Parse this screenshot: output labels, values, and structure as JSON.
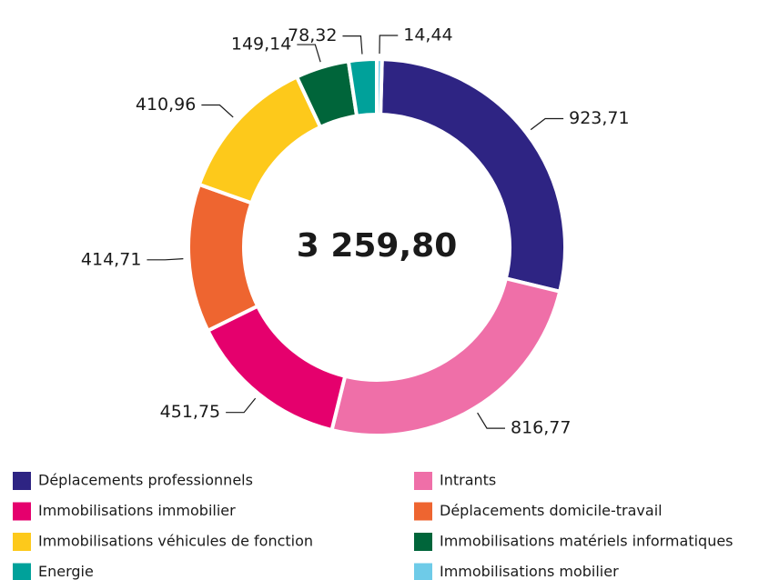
{
  "chart_data": {
    "type": "donut",
    "center_label": "3 259,80",
    "categories": [
      "Déplacements professionnels",
      "Intrants",
      "Immobilisations immobilier",
      "Déplacements domicile-travail",
      "Immobilisations véhicules de fonction",
      "Immobilisations matériels informatiques",
      "Energie",
      "Immobilisations mobilier"
    ],
    "values": [
      923.71,
      816.77,
      451.75,
      414.71,
      410.96,
      149.14,
      78.32,
      14.44
    ],
    "value_labels": [
      "923,71",
      "816,77",
      "451,75",
      "414,71",
      "410,96",
      "149,14",
      "78,32",
      "14,44"
    ],
    "colors": [
      "#2e2483",
      "#ef6fa8",
      "#e5006d",
      "#ee6530",
      "#fdc91b",
      "#00653a",
      "#00a19a",
      "#6ecbe8"
    ],
    "legend": "bottom"
  }
}
